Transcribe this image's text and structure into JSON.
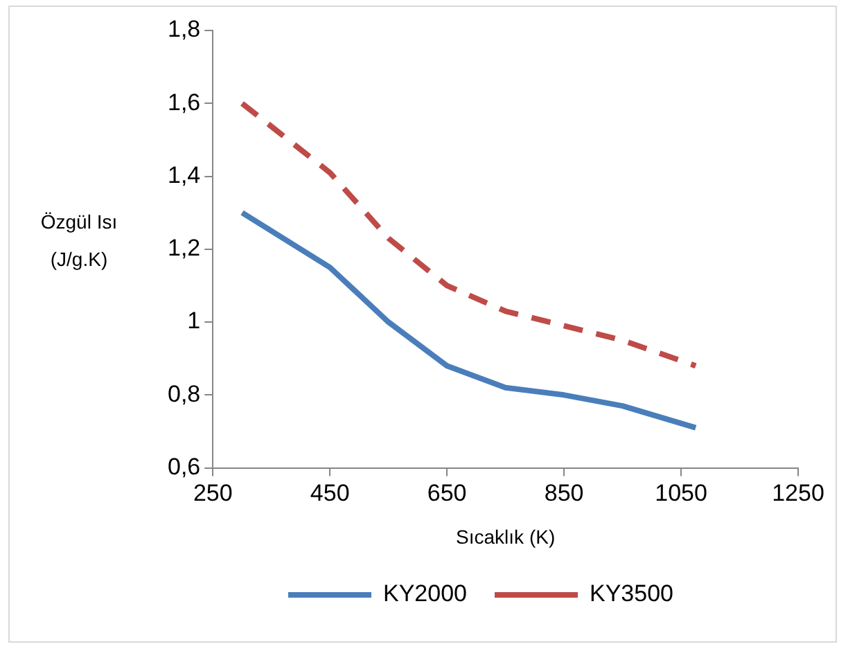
{
  "chart_data": {
    "type": "line",
    "xlabel": "Sıcaklık (K)",
    "ylabel": "Özgül Isı (J/g.K)",
    "xlim": [
      250,
      1250
    ],
    "xticks": [
      250,
      450,
      650,
      850,
      1050,
      1250
    ],
    "ylim": [
      0.6,
      1.8
    ],
    "yticks": [
      {
        "value": 0.6,
        "label": "0,6"
      },
      {
        "value": 0.8,
        "label": "0,8"
      },
      {
        "value": 1,
        "label": "1"
      },
      {
        "value": 1.2,
        "label": "1,2"
      },
      {
        "value": 1.4,
        "label": "1,4"
      },
      {
        "value": 1.6,
        "label": "1,6"
      },
      {
        "value": 1.8,
        "label": "1,8"
      }
    ],
    "grid": false,
    "legend": "bottom",
    "marker": "none",
    "series": [
      {
        "name": "KY2000",
        "color": "#4a7ebb",
        "line_style": "solid",
        "x": [
          300,
          450,
          550,
          650,
          750,
          850,
          950,
          1075
        ],
        "values": [
          1.3,
          1.15,
          1.0,
          0.88,
          0.82,
          0.8,
          0.77,
          0.71
        ]
      },
      {
        "name": "KY3500",
        "color": "#be4b48",
        "line_style": "dashed",
        "x": [
          300,
          450,
          550,
          650,
          750,
          850,
          950,
          1075
        ],
        "values": [
          1.6,
          1.41,
          1.23,
          1.1,
          1.03,
          0.99,
          0.95,
          0.88
        ]
      }
    ]
  }
}
